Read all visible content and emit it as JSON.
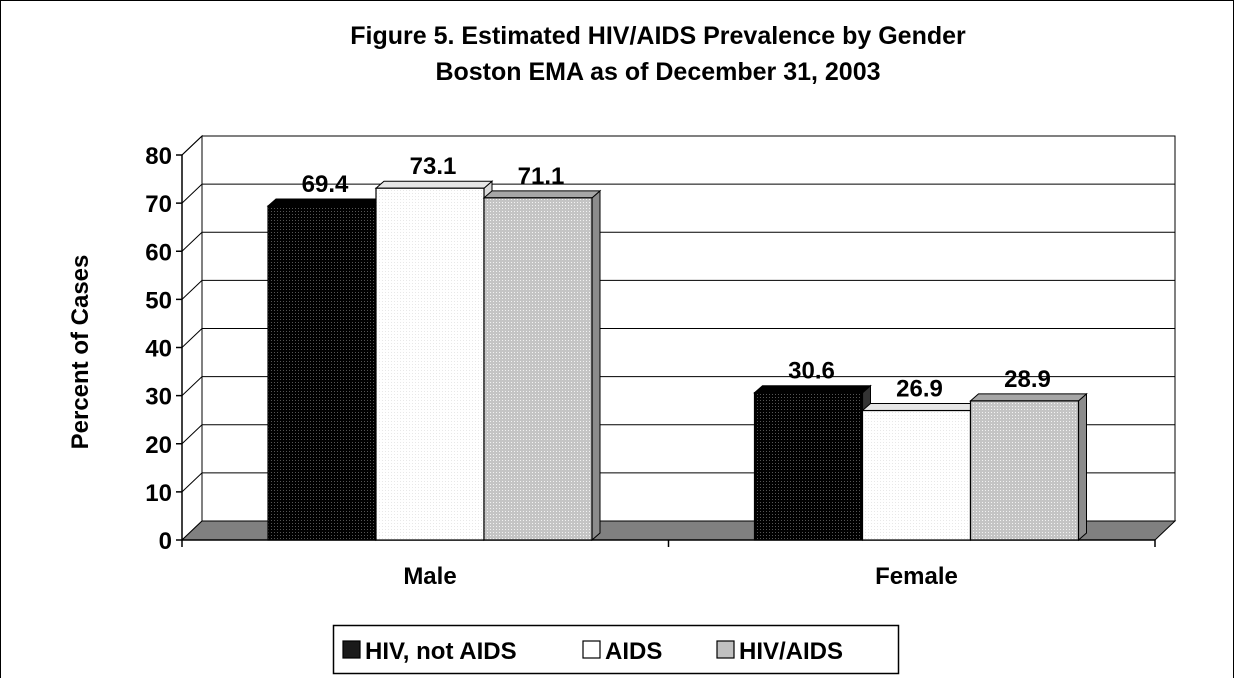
{
  "chart_data": {
    "type": "bar",
    "title_line1": "Figure 5. Estimated HIV/AIDS Prevalence by Gender",
    "title_line2": "Boston EMA as of December 31, 2003",
    "xlabel": "",
    "ylabel": "Percent of Cases",
    "ylim": [
      0,
      80
    ],
    "yticks": [
      "0",
      "10",
      "20",
      "30",
      "40",
      "50",
      "60",
      "70",
      "80"
    ],
    "grid": true,
    "legend_position": "bottom",
    "categories": [
      "Male",
      "Female"
    ],
    "series": [
      {
        "name": "HIV, not AIDS",
        "values": [
          69.4,
          30.6
        ],
        "labels": [
          "69.4",
          "30.6"
        ],
        "color": "#1a1a1a",
        "top": "#000000",
        "side": "#333333"
      },
      {
        "name": "AIDS",
        "values": [
          73.1,
          26.9
        ],
        "labels": [
          "73.1",
          "26.9"
        ],
        "color": "#ffffff",
        "top": "#e6e6e6",
        "side": "#d9d9d9"
      },
      {
        "name": "HIV/AIDS",
        "values": [
          71.1,
          28.9
        ],
        "labels": [
          "71.1",
          "28.9"
        ],
        "color": "#c0c0c0",
        "top": "#a6a6a6",
        "side": "#8c8c8c"
      }
    ]
  }
}
